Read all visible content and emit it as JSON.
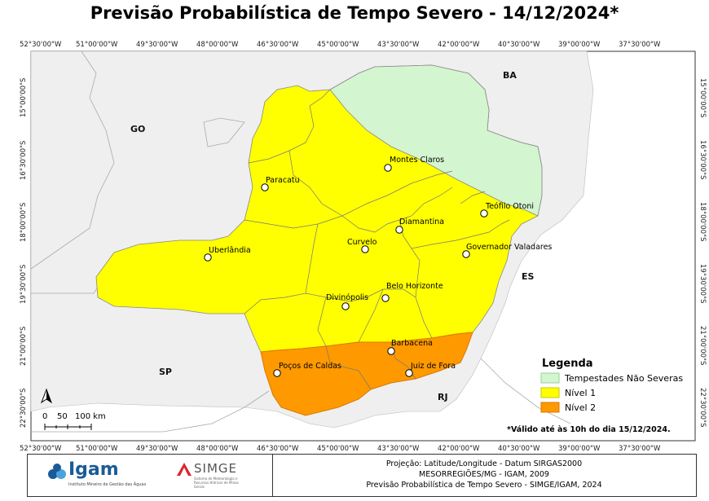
{
  "title": "Previsão Probabilística de Tempo Severo - 14/12/2024*",
  "lon_ticks": [
    "52°30'00\"W",
    "51°00'00\"W",
    "49°30'00\"W",
    "48°00'00\"W",
    "46°30'00\"W",
    "45°00'00\"W",
    "43°30'00\"W",
    "42°00'00\"W",
    "40°30'00\"W",
    "39°00'00\"W",
    "37°30'00\"W"
  ],
  "lat_ticks": [
    "15°00'00\"S",
    "16°30'00\"S",
    "18°00'00\"S",
    "19°30'00\"S",
    "21°00'00\"S",
    "22°30'00\"S"
  ],
  "states": {
    "go": "GO",
    "ba": "BA",
    "es": "ES",
    "sp": "SP",
    "rj": "RJ"
  },
  "cities": [
    {
      "name": "Montes Claros"
    },
    {
      "name": "Paracatu"
    },
    {
      "name": "Teófilo Otoni"
    },
    {
      "name": "Diamantina"
    },
    {
      "name": "Curvelo"
    },
    {
      "name": "Governador Valadares"
    },
    {
      "name": "Uberlândia"
    },
    {
      "name": "Belo Horizonte"
    },
    {
      "name": "Divinópolis"
    },
    {
      "name": "Barbacena"
    },
    {
      "name": "Poços de Caldas"
    },
    {
      "name": "Juiz de Fora"
    }
  ],
  "legend": {
    "title": "Legenda",
    "items": [
      {
        "label": "Tempestades Não Severas",
        "color": "#d3f5cf"
      },
      {
        "label": "Nível 1",
        "color": "#ffff00"
      },
      {
        "label": "Nível 2",
        "color": "#ff9900"
      }
    ]
  },
  "validity": "*Válido até às 10h do dia 15/12/2024.",
  "scale": {
    "labels": [
      "0",
      "50",
      "100 km"
    ]
  },
  "footer": {
    "igam_name": "Igam",
    "igam_sub": "Instituto Mineiro de Gestão das Águas",
    "simge_name": "SIMGE",
    "simge_sub": "Sistema de Meteorologia e Recursos Hídricos de Minas Gerais",
    "credits": [
      "Projeção: Latitude/Longitude - Datum SIRGAS2000",
      "MESORREGIÕES/MG - IGAM, 2009",
      "Previsão Probabilística de Tempo Severo - SIMGE/IGAM, 2024"
    ]
  },
  "colors": {
    "ocean": "#ffffff",
    "neighbors": "#efefef",
    "yellow": "#ffff00",
    "orange": "#ff9900",
    "green": "#d3f5cf"
  }
}
